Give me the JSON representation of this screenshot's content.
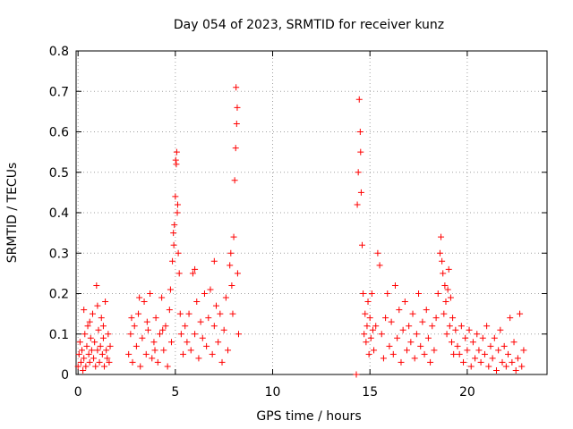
{
  "chart_data": {
    "type": "scatter",
    "title": "Day 054 of 2023, SRMTID for receiver kunz",
    "xlabel": "GPS time / hours",
    "ylabel": "SRMTID / TECUs",
    "xlim": [
      -0.1,
      24.1
    ],
    "ylim": [
      0,
      0.8
    ],
    "xticks": [
      0,
      5,
      10,
      15,
      20
    ],
    "yticks": [
      0,
      0.1,
      0.2,
      0.3,
      0.4,
      0.5,
      0.6,
      0.7,
      0.8
    ],
    "xtick_labels": [
      "0",
      "5",
      "10",
      "15",
      "20"
    ],
    "ytick_labels": [
      "0",
      "0.1",
      "0.2",
      "0.3",
      "0.4",
      "0.5",
      "0.6",
      "0.7",
      "0.8"
    ],
    "grid": true,
    "marker": "+",
    "color": "#ff0000",
    "series": [
      {
        "name": "SRMTID",
        "points": [
          [
            0.0,
            0.02
          ],
          [
            0.05,
            0.05
          ],
          [
            0.1,
            0.08
          ],
          [
            0.15,
            0.03
          ],
          [
            0.2,
            0.06
          ],
          [
            0.25,
            0.01
          ],
          [
            0.3,
            0.04
          ],
          [
            0.35,
            0.1
          ],
          [
            0.4,
            0.02
          ],
          [
            0.45,
            0.07
          ],
          [
            0.5,
            0.12
          ],
          [
            0.55,
            0.05
          ],
          [
            0.6,
            0.03
          ],
          [
            0.65,
            0.09
          ],
          [
            0.7,
            0.06
          ],
          [
            0.75,
            0.15
          ],
          [
            0.8,
            0.04
          ],
          [
            0.85,
            0.08
          ],
          [
            0.9,
            0.02
          ],
          [
            0.95,
            0.22
          ],
          [
            1.0,
            0.06
          ],
          [
            1.05,
            0.11
          ],
          [
            1.1,
            0.03
          ],
          [
            1.15,
            0.07
          ],
          [
            1.2,
            0.14
          ],
          [
            1.25,
            0.05
          ],
          [
            1.3,
            0.09
          ],
          [
            1.35,
            0.02
          ],
          [
            1.4,
            0.18
          ],
          [
            1.45,
            0.06
          ],
          [
            1.5,
            0.04
          ],
          [
            1.55,
            0.1
          ],
          [
            1.6,
            0.03
          ],
          [
            1.65,
            0.07
          ],
          [
            0.3,
            0.16
          ],
          [
            0.6,
            0.13
          ],
          [
            1.0,
            0.17
          ],
          [
            1.3,
            0.12
          ],
          [
            2.6,
            0.05
          ],
          [
            2.7,
            0.1
          ],
          [
            2.8,
            0.03
          ],
          [
            2.9,
            0.12
          ],
          [
            3.0,
            0.07
          ],
          [
            3.1,
            0.15
          ],
          [
            3.2,
            0.02
          ],
          [
            3.3,
            0.09
          ],
          [
            3.4,
            0.18
          ],
          [
            3.5,
            0.05
          ],
          [
            3.6,
            0.11
          ],
          [
            3.7,
            0.2
          ],
          [
            3.8,
            0.04
          ],
          [
            3.9,
            0.08
          ],
          [
            4.0,
            0.14
          ],
          [
            4.1,
            0.03
          ],
          [
            4.2,
            0.1
          ],
          [
            4.3,
            0.19
          ],
          [
            4.4,
            0.06
          ],
          [
            4.5,
            0.12
          ],
          [
            4.6,
            0.02
          ],
          [
            4.7,
            0.16
          ],
          [
            4.8,
            0.08
          ],
          [
            2.75,
            0.14
          ],
          [
            3.15,
            0.19
          ],
          [
            3.55,
            0.13
          ],
          [
            3.95,
            0.06
          ],
          [
            4.35,
            0.11
          ],
          [
            4.75,
            0.21
          ],
          [
            4.85,
            0.28
          ],
          [
            4.9,
            0.35
          ],
          [
            4.95,
            0.37
          ],
          [
            5.0,
            0.44
          ],
          [
            5.05,
            0.52
          ],
          [
            5.07,
            0.55
          ],
          [
            5.1,
            0.4
          ],
          [
            5.15,
            0.3
          ],
          [
            5.2,
            0.25
          ],
          [
            5.25,
            0.15
          ],
          [
            5.3,
            0.1
          ],
          [
            5.4,
            0.05
          ],
          [
            4.92,
            0.32
          ],
          [
            5.02,
            0.53
          ],
          [
            5.12,
            0.42
          ],
          [
            5.5,
            0.12
          ],
          [
            5.6,
            0.08
          ],
          [
            5.7,
            0.15
          ],
          [
            5.8,
            0.06
          ],
          [
            5.9,
            0.25
          ],
          [
            6.0,
            0.1
          ],
          [
            6.1,
            0.18
          ],
          [
            6.2,
            0.04
          ],
          [
            6.3,
            0.13
          ],
          [
            6.4,
            0.09
          ],
          [
            6.5,
            0.2
          ],
          [
            6.6,
            0.07
          ],
          [
            6.7,
            0.14
          ],
          [
            6.8,
            0.21
          ],
          [
            6.9,
            0.05
          ],
          [
            7.0,
            0.12
          ],
          [
            7.1,
            0.17
          ],
          [
            7.2,
            0.08
          ],
          [
            7.3,
            0.15
          ],
          [
            7.4,
            0.03
          ],
          [
            7.5,
            0.11
          ],
          [
            7.6,
            0.19
          ],
          [
            7.7,
            0.06
          ],
          [
            7.8,
            0.27
          ],
          [
            7.85,
            0.3
          ],
          [
            7.9,
            0.22
          ],
          [
            7.95,
            0.15
          ],
          [
            8.0,
            0.34
          ],
          [
            8.05,
            0.48
          ],
          [
            8.1,
            0.56
          ],
          [
            8.15,
            0.62
          ],
          [
            8.12,
            0.71
          ],
          [
            8.18,
            0.66
          ],
          [
            8.2,
            0.25
          ],
          [
            8.25,
            0.1
          ],
          [
            6.0,
            0.26
          ],
          [
            7.0,
            0.28
          ],
          [
            14.3,
            0.0
          ],
          [
            14.35,
            0.42
          ],
          [
            14.4,
            0.5
          ],
          [
            14.45,
            0.68
          ],
          [
            14.5,
            0.6
          ],
          [
            14.52,
            0.55
          ],
          [
            14.55,
            0.45
          ],
          [
            14.6,
            0.32
          ],
          [
            14.65,
            0.2
          ],
          [
            14.7,
            0.1
          ],
          [
            14.75,
            0.15
          ],
          [
            14.8,
            0.08
          ],
          [
            14.85,
            0.12
          ],
          [
            14.9,
            0.18
          ],
          [
            14.95,
            0.05
          ],
          [
            15.0,
            0.14
          ],
          [
            15.05,
            0.09
          ],
          [
            15.1,
            0.2
          ],
          [
            15.15,
            0.11
          ],
          [
            15.2,
            0.06
          ],
          [
            15.3,
            0.12
          ],
          [
            15.4,
            0.3
          ],
          [
            15.5,
            0.27
          ],
          [
            15.6,
            0.1
          ],
          [
            15.7,
            0.04
          ],
          [
            15.8,
            0.14
          ],
          [
            15.9,
            0.2
          ],
          [
            16.0,
            0.07
          ],
          [
            16.1,
            0.13
          ],
          [
            16.2,
            0.05
          ],
          [
            16.3,
            0.22
          ],
          [
            16.4,
            0.09
          ],
          [
            16.5,
            0.16
          ],
          [
            16.6,
            0.03
          ],
          [
            16.7,
            0.11
          ],
          [
            16.8,
            0.18
          ],
          [
            16.9,
            0.06
          ],
          [
            17.0,
            0.12
          ],
          [
            17.1,
            0.08
          ],
          [
            17.2,
            0.15
          ],
          [
            17.3,
            0.04
          ],
          [
            17.4,
            0.1
          ],
          [
            17.5,
            0.2
          ],
          [
            17.6,
            0.07
          ],
          [
            17.7,
            0.13
          ],
          [
            17.8,
            0.05
          ],
          [
            17.9,
            0.16
          ],
          [
            18.0,
            0.09
          ],
          [
            18.1,
            0.03
          ],
          [
            18.2,
            0.12
          ],
          [
            18.3,
            0.06
          ],
          [
            18.4,
            0.14
          ],
          [
            18.5,
            0.2
          ],
          [
            18.6,
            0.3
          ],
          [
            18.65,
            0.34
          ],
          [
            18.7,
            0.28
          ],
          [
            18.75,
            0.25
          ],
          [
            18.8,
            0.15
          ],
          [
            18.85,
            0.22
          ],
          [
            18.9,
            0.18
          ],
          [
            18.95,
            0.1
          ],
          [
            19.0,
            0.21
          ],
          [
            19.05,
            0.26
          ],
          [
            19.1,
            0.12
          ],
          [
            19.15,
            0.19
          ],
          [
            19.2,
            0.08
          ],
          [
            19.25,
            0.14
          ],
          [
            19.3,
            0.05
          ],
          [
            19.4,
            0.11
          ],
          [
            19.5,
            0.07
          ],
          [
            19.6,
            0.05
          ],
          [
            19.7,
            0.12
          ],
          [
            19.8,
            0.03
          ],
          [
            19.9,
            0.09
          ],
          [
            20.0,
            0.06
          ],
          [
            20.1,
            0.11
          ],
          [
            20.2,
            0.02
          ],
          [
            20.3,
            0.08
          ],
          [
            20.4,
            0.04
          ],
          [
            20.5,
            0.1
          ],
          [
            20.6,
            0.06
          ],
          [
            20.7,
            0.03
          ],
          [
            20.8,
            0.09
          ],
          [
            20.9,
            0.05
          ],
          [
            21.0,
            0.12
          ],
          [
            21.1,
            0.02
          ],
          [
            21.2,
            0.07
          ],
          [
            21.3,
            0.04
          ],
          [
            21.4,
            0.09
          ],
          [
            21.5,
            0.01
          ],
          [
            21.6,
            0.06
          ],
          [
            21.7,
            0.11
          ],
          [
            21.8,
            0.03
          ],
          [
            21.9,
            0.07
          ],
          [
            22.0,
            0.02
          ],
          [
            22.1,
            0.05
          ],
          [
            22.2,
            0.14
          ],
          [
            22.3,
            0.03
          ],
          [
            22.4,
            0.08
          ],
          [
            22.5,
            0.01
          ],
          [
            22.6,
            0.04
          ],
          [
            22.7,
            0.15
          ],
          [
            22.8,
            0.02
          ],
          [
            22.9,
            0.06
          ]
        ]
      }
    ]
  }
}
